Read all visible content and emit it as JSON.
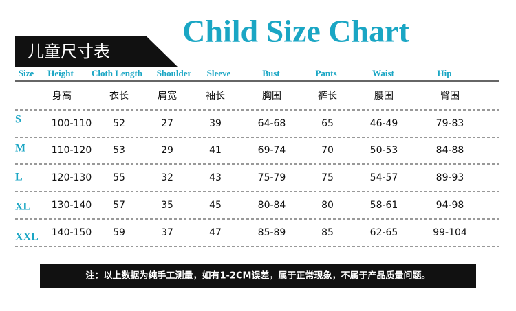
{
  "title": "Child Size Chart",
  "tab_label": "儿童尺寸表",
  "table": {
    "english_headers": [
      "Size",
      "Height",
      "Cloth Length",
      "Shoulder",
      "Sleeve",
      "Bust",
      "Pants",
      "Waist",
      "Hip"
    ],
    "chinese_headers": [
      "身高",
      "衣长",
      "肩宽",
      "袖长",
      "胸围",
      "裤长",
      "腰围",
      "臀围"
    ],
    "rows": [
      [
        "S",
        "100-110",
        "52",
        "27",
        "39",
        "64-68",
        "65",
        "46-49",
        "79-83"
      ],
      [
        "M",
        "110-120",
        "53",
        "29",
        "41",
        "69-74",
        "70",
        "50-53",
        "84-88"
      ],
      [
        "L",
        "120-130",
        "55",
        "32",
        "43",
        "75-79",
        "75",
        "54-57",
        "89-93"
      ],
      [
        "XL",
        "130-140",
        "57",
        "35",
        "45",
        "80-84",
        "80",
        "58-61",
        "94-98"
      ],
      [
        "XXL",
        "140-150",
        "59",
        "37",
        "47",
        "85-89",
        "85",
        "62-65",
        "99-104"
      ]
    ]
  },
  "note": "注：以上数据为纯手工测量，如有1-2CM误差，属于正常现象，不属于产品质量问题。"
}
